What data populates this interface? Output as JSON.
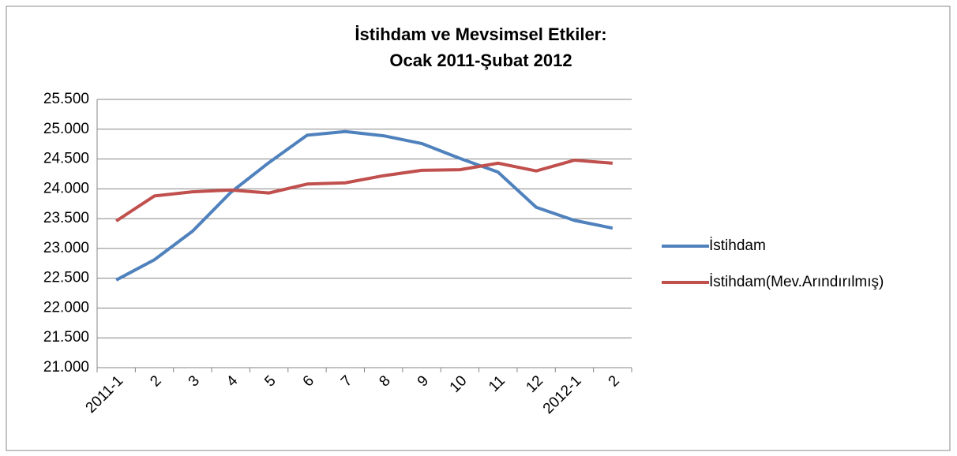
{
  "chart_data": {
    "type": "line",
    "title": [
      "İstihdam ve Mevsimsel Etkiler:",
      "Ocak 2011-Şubat 2012"
    ],
    "categories": [
      "2011-1",
      "2",
      "3",
      "4",
      "5",
      "6",
      "7",
      "8",
      "9",
      "10",
      "11",
      "12",
      "2012-1",
      "2"
    ],
    "series": [
      {
        "name": "İstihdam",
        "color": "#4f81bd",
        "values": [
          22470,
          22810,
          23290,
          23940,
          24440,
          24900,
          24960,
          24890,
          24760,
          24510,
          24280,
          23690,
          23470,
          23340
        ]
      },
      {
        "name": "İstihdam(Mev.Arındırılmış)",
        "color": "#c0504d",
        "values": [
          23460,
          23880,
          23950,
          23980,
          23930,
          24080,
          24100,
          24220,
          24310,
          24320,
          24430,
          24300,
          24480,
          24430
        ]
      }
    ],
    "ylim": [
      21000,
      25500
    ],
    "yticks": [
      {
        "value": 21000,
        "label": "21.000"
      },
      {
        "value": 21500,
        "label": "21.500"
      },
      {
        "value": 22000,
        "label": "22.000"
      },
      {
        "value": 22500,
        "label": "22.500"
      },
      {
        "value": 23000,
        "label": "23.000"
      },
      {
        "value": 23500,
        "label": "23.500"
      },
      {
        "value": 24000,
        "label": "24.000"
      },
      {
        "value": 24500,
        "label": "24.500"
      },
      {
        "value": 25000,
        "label": "25.000"
      },
      {
        "value": 25500,
        "label": "25.500"
      }
    ],
    "grid": true,
    "legend": "right"
  }
}
